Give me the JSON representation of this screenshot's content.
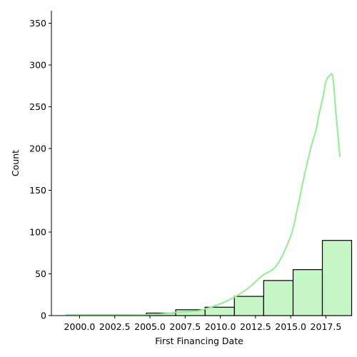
{
  "chart_data": {
    "type": "bar",
    "subtype": "histogram-with-kde",
    "xlabel": "First Financing Date",
    "ylabel": "Count",
    "xlim": [
      1998.0,
      2019.0
    ],
    "ylim": [
      0,
      365
    ],
    "x_ticks": [
      2000.0,
      2002.5,
      2005.0,
      2007.5,
      2010.0,
      2012.5,
      2015.0,
      2017.5
    ],
    "x_tick_labels": [
      "2000.0",
      "2002.5",
      "2005.0",
      "2007.5",
      "2010.0",
      "2012.5",
      "2015.0",
      "2017.5"
    ],
    "y_ticks": [
      0,
      50,
      100,
      150,
      200,
      250,
      300,
      350
    ],
    "y_tick_labels": [
      "0",
      "50",
      "100",
      "150",
      "200",
      "250",
      "300",
      "350"
    ],
    "bins": [
      {
        "x0": 1998.5,
        "x1": 2000.58,
        "value": 0
      },
      {
        "x0": 2000.58,
        "x1": 2002.67,
        "value": 0
      },
      {
        "x0": 2002.67,
        "x1": 2004.75,
        "value": 0
      },
      {
        "x0": 2004.75,
        "x1": 2006.83,
        "value": 3
      },
      {
        "x0": 2006.83,
        "x1": 2008.92,
        "value": 7
      },
      {
        "x0": 2008.92,
        "x1": 2011.0,
        "value": 10
      },
      {
        "x0": 2011.0,
        "x1": 2013.08,
        "value": 23
      },
      {
        "x0": 2013.08,
        "x1": 2015.17,
        "value": 42
      },
      {
        "x0": 2015.17,
        "x1": 2017.25,
        "value": 55
      },
      {
        "x0": 2017.25,
        "x1": 2019.33,
        "value": 90
      }
    ],
    "kde": {
      "x": [
        1999.0,
        2001.0,
        2003.0,
        2005.0,
        2007.0,
        2008.5,
        2010.0,
        2011.0,
        2012.0,
        2013.0,
        2014.0,
        2015.0,
        2015.5,
        2016.0,
        2016.5,
        2016.8,
        2017.0,
        2017.3,
        2017.5,
        2017.8,
        2018.0,
        2018.2,
        2018.5
      ],
      "y": [
        1,
        1,
        1,
        1,
        4,
        6,
        14,
        22,
        33,
        48,
        60,
        95,
        130,
        170,
        205,
        222,
        240,
        262,
        280,
        288,
        285,
        245,
        190
      ]
    },
    "bar_fill": "#c6f6c6",
    "bar_stroke": "#000000",
    "kde_color": "#90ee90",
    "grid": false
  }
}
